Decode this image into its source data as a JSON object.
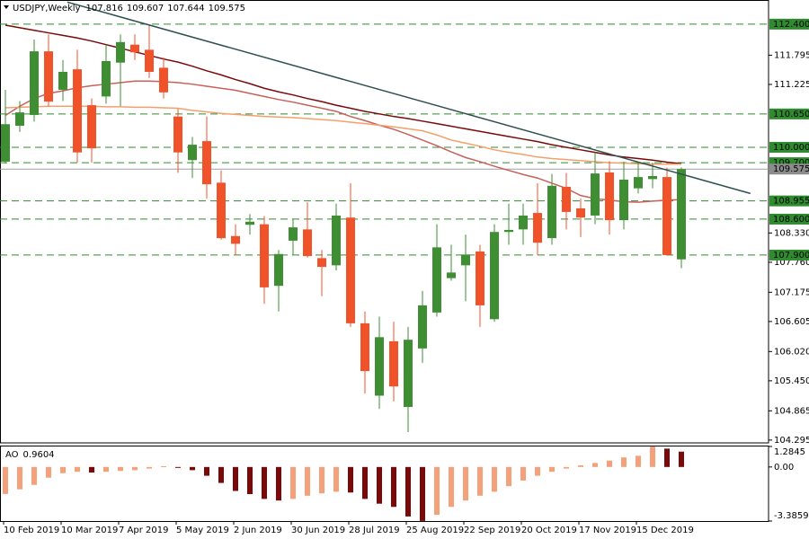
{
  "chart_data": {
    "type": "candlestick",
    "title": "USDJPY,Weekly",
    "ohlc_header": [
      107.816,
      109.607,
      107.644,
      109.575
    ],
    "categories": [
      "10 Feb 2019",
      null,
      null,
      null,
      "10 Mar 2019",
      null,
      null,
      null,
      "7 Apr 2019",
      null,
      null,
      null,
      "5 May 2019",
      null,
      null,
      null,
      "2 Jun 2019",
      null,
      null,
      null,
      "30 Jun 2019",
      null,
      null,
      null,
      "28 Jul 2019",
      null,
      null,
      null,
      "25 Aug 2019",
      null,
      null,
      null,
      "22 Sep 2019",
      null,
      null,
      null,
      "20 Oct 2019",
      null,
      null,
      null,
      "17 Nov 2019",
      null,
      null,
      null,
      "15 Dec 2019",
      null,
      null,
      null
    ],
    "open": [
      109.72,
      110.42,
      110.63,
      111.87,
      111.12,
      111.52,
      110.82,
      110.99,
      111.65,
      112.0,
      111.9,
      111.55,
      110.6,
      109.75,
      110.12,
      109.31,
      108.27,
      108.49,
      108.5,
      107.3,
      108.18,
      108.4,
      107.84,
      107.7,
      108.63,
      106.57,
      105.16,
      106.22,
      104.94,
      106.08,
      106.78,
      107.45,
      107.7,
      107.97,
      106.65,
      108.35,
      108.4,
      108.72,
      108.23,
      109.23,
      108.81,
      108.67,
      109.51,
      108.58,
      109.2,
      109.38,
      109.42,
      107.816
    ],
    "high": [
      111.12,
      110.9,
      112.1,
      112.2,
      111.7,
      111.9,
      110.95,
      112.0,
      112.2,
      112.2,
      112.4,
      111.75,
      110.75,
      110.2,
      110.6,
      109.55,
      108.5,
      108.7,
      108.66,
      108.0,
      108.6,
      108.93,
      108.0,
      108.9,
      109.3,
      106.8,
      106.7,
      106.6,
      106.5,
      107.2,
      108.5,
      108.1,
      108.3,
      108.1,
      108.5,
      108.9,
      108.9,
      109.3,
      109.48,
      109.5,
      109.0,
      109.9,
      109.73,
      109.72,
      109.7,
      109.7,
      109.6,
      109.607
    ],
    "low": [
      109.68,
      110.3,
      110.5,
      110.8,
      110.9,
      109.7,
      109.7,
      110.85,
      110.8,
      111.7,
      111.35,
      110.95,
      109.5,
      109.4,
      109.0,
      108.2,
      107.9,
      108.3,
      106.95,
      106.8,
      107.9,
      107.85,
      107.1,
      107.6,
      106.5,
      105.2,
      104.9,
      105.05,
      104.45,
      105.8,
      106.7,
      107.4,
      107.0,
      106.5,
      106.6,
      108.1,
      108.1,
      107.9,
      108.1,
      108.4,
      108.25,
      108.5,
      108.3,
      108.4,
      109.1,
      109.2,
      107.9,
      107.644
    ],
    "close": [
      110.45,
      110.68,
      111.87,
      110.89,
      111.47,
      109.9,
      109.98,
      111.68,
      112.05,
      111.85,
      111.47,
      111.07,
      109.9,
      110.05,
      109.28,
      108.23,
      108.12,
      108.55,
      107.27,
      107.92,
      108.44,
      107.88,
      107.67,
      108.67,
      106.57,
      105.64,
      106.3,
      105.34,
      106.25,
      106.92,
      108.05,
      107.56,
      107.91,
      106.92,
      108.35,
      108.39,
      108.67,
      108.14,
      109.25,
      108.74,
      108.63,
      109.49,
      108.58,
      109.37,
      109.42,
      109.44,
      107.9,
      109.575
    ],
    "up_color": "#3f8e34",
    "down_color": "#f0522a",
    "ylim": [
      104.24,
      112.87
    ],
    "yticks": [
      111.795,
      111.225,
      {
        "value": 108.33,
        "label": "108.330"
      },
      {
        "value": 107.76,
        "label": "107.760"
      },
      107.175,
      106.605,
      {
        "value": 106.02,
        "label": "106.020"
      },
      {
        "value": 105.45,
        "label": "105.450"
      },
      104.865,
      104.295
    ],
    "levels": [
      {
        "value": 112.4,
        "label": "112.400"
      },
      {
        "value": 110.65,
        "label": "110.650"
      },
      {
        "value": 110,
        "label": "110.000"
      },
      {
        "value": 109.7,
        "label": "109.700"
      },
      108.955,
      {
        "value": 108.6,
        "label": "108.600"
      },
      {
        "value": 107.9,
        "label": "107.900"
      }
    ],
    "level_color": "#2e8b2e",
    "current_price": 109.575,
    "moving_averages": [
      {
        "color": "#7a0a0a",
        "values": [
          112.38,
          112.33,
          112.28,
          112.23,
          112.18,
          112.13,
          112.07,
          112.0,
          111.93,
          111.86,
          111.79,
          111.72,
          111.66,
          111.58,
          111.49,
          111.41,
          111.32,
          111.24,
          111.15,
          111.08,
          111.02,
          110.95,
          110.89,
          110.82,
          110.76,
          110.7,
          110.65,
          110.6,
          110.56,
          110.51,
          110.46,
          110.41,
          110.36,
          110.31,
          110.26,
          110.21,
          110.16,
          110.11,
          110.05,
          110.0,
          109.95,
          109.9,
          109.85,
          109.81,
          109.78,
          109.75,
          109.71,
          109.68
        ]
      },
      {
        "color": "#c8605a",
        "values": [
          110.62,
          110.8,
          110.95,
          111.05,
          111.1,
          111.16,
          111.2,
          111.23,
          111.26,
          111.29,
          111.29,
          111.28,
          111.26,
          111.23,
          111.19,
          111.15,
          111.11,
          111.05,
          110.99,
          110.93,
          110.88,
          110.82,
          110.76,
          110.7,
          110.6,
          110.52,
          110.43,
          110.35,
          110.25,
          110.14,
          110.03,
          109.91,
          109.8,
          109.72,
          109.63,
          109.55,
          109.47,
          109.4,
          109.3,
          109.2,
          109.06,
          109.0,
          108.97,
          108.94,
          108.93,
          108.95,
          108.97,
          108.98
        ]
      },
      {
        "color": "#f4a06a",
        "values": [
          110.77,
          110.78,
          110.79,
          110.8,
          110.8,
          110.8,
          110.8,
          110.79,
          110.79,
          110.78,
          110.78,
          110.77,
          110.76,
          110.72,
          110.69,
          110.66,
          110.64,
          110.62,
          110.6,
          110.59,
          110.58,
          110.56,
          110.54,
          110.52,
          110.49,
          110.46,
          110.43,
          110.4,
          110.36,
          110.32,
          110.24,
          110.14,
          110.08,
          110.02,
          109.95,
          109.9,
          109.86,
          109.81,
          109.78,
          109.76,
          109.74,
          109.72,
          109.7,
          109.69,
          109.68,
          109.67,
          109.67,
          109.67
        ]
      }
    ],
    "trendline": {
      "x": [
        4.3,
        51.8
      ],
      "values": [
        112.83,
        109.1
      ],
      "color": "#2f4f4f"
    },
    "oscillator": {
      "title": "AO",
      "last": 0.9604,
      "values": [
        -1.69,
        -1.4,
        -1.12,
        -0.67,
        -0.39,
        -0.3,
        -0.35,
        -0.3,
        -0.25,
        -0.2,
        -0.1,
        0.05,
        -0.05,
        -0.2,
        -0.55,
        -1.0,
        -1.5,
        -1.7,
        -2.0,
        -2.1,
        -2.0,
        -1.8,
        -1.65,
        -1.55,
        -1.6,
        -2.0,
        -2.3,
        -2.5,
        -3.1,
        -3.38,
        -3.0,
        -2.5,
        -2.1,
        -1.8,
        -1.55,
        -1.2,
        -0.85,
        -0.55,
        -0.3,
        -0.1,
        0.1,
        0.25,
        0.4,
        0.6,
        0.7,
        1.28,
        1.15,
        0.9604
      ],
      "up_color": "#f4a07a",
      "down_color": "#7a0a0a",
      "ylim": [
        -3.3859,
        1.2845
      ],
      "yticks": [
        1.2845,
        {
          "value": 0,
          "label": "0.00"
        },
        -3.3859
      ]
    }
  }
}
